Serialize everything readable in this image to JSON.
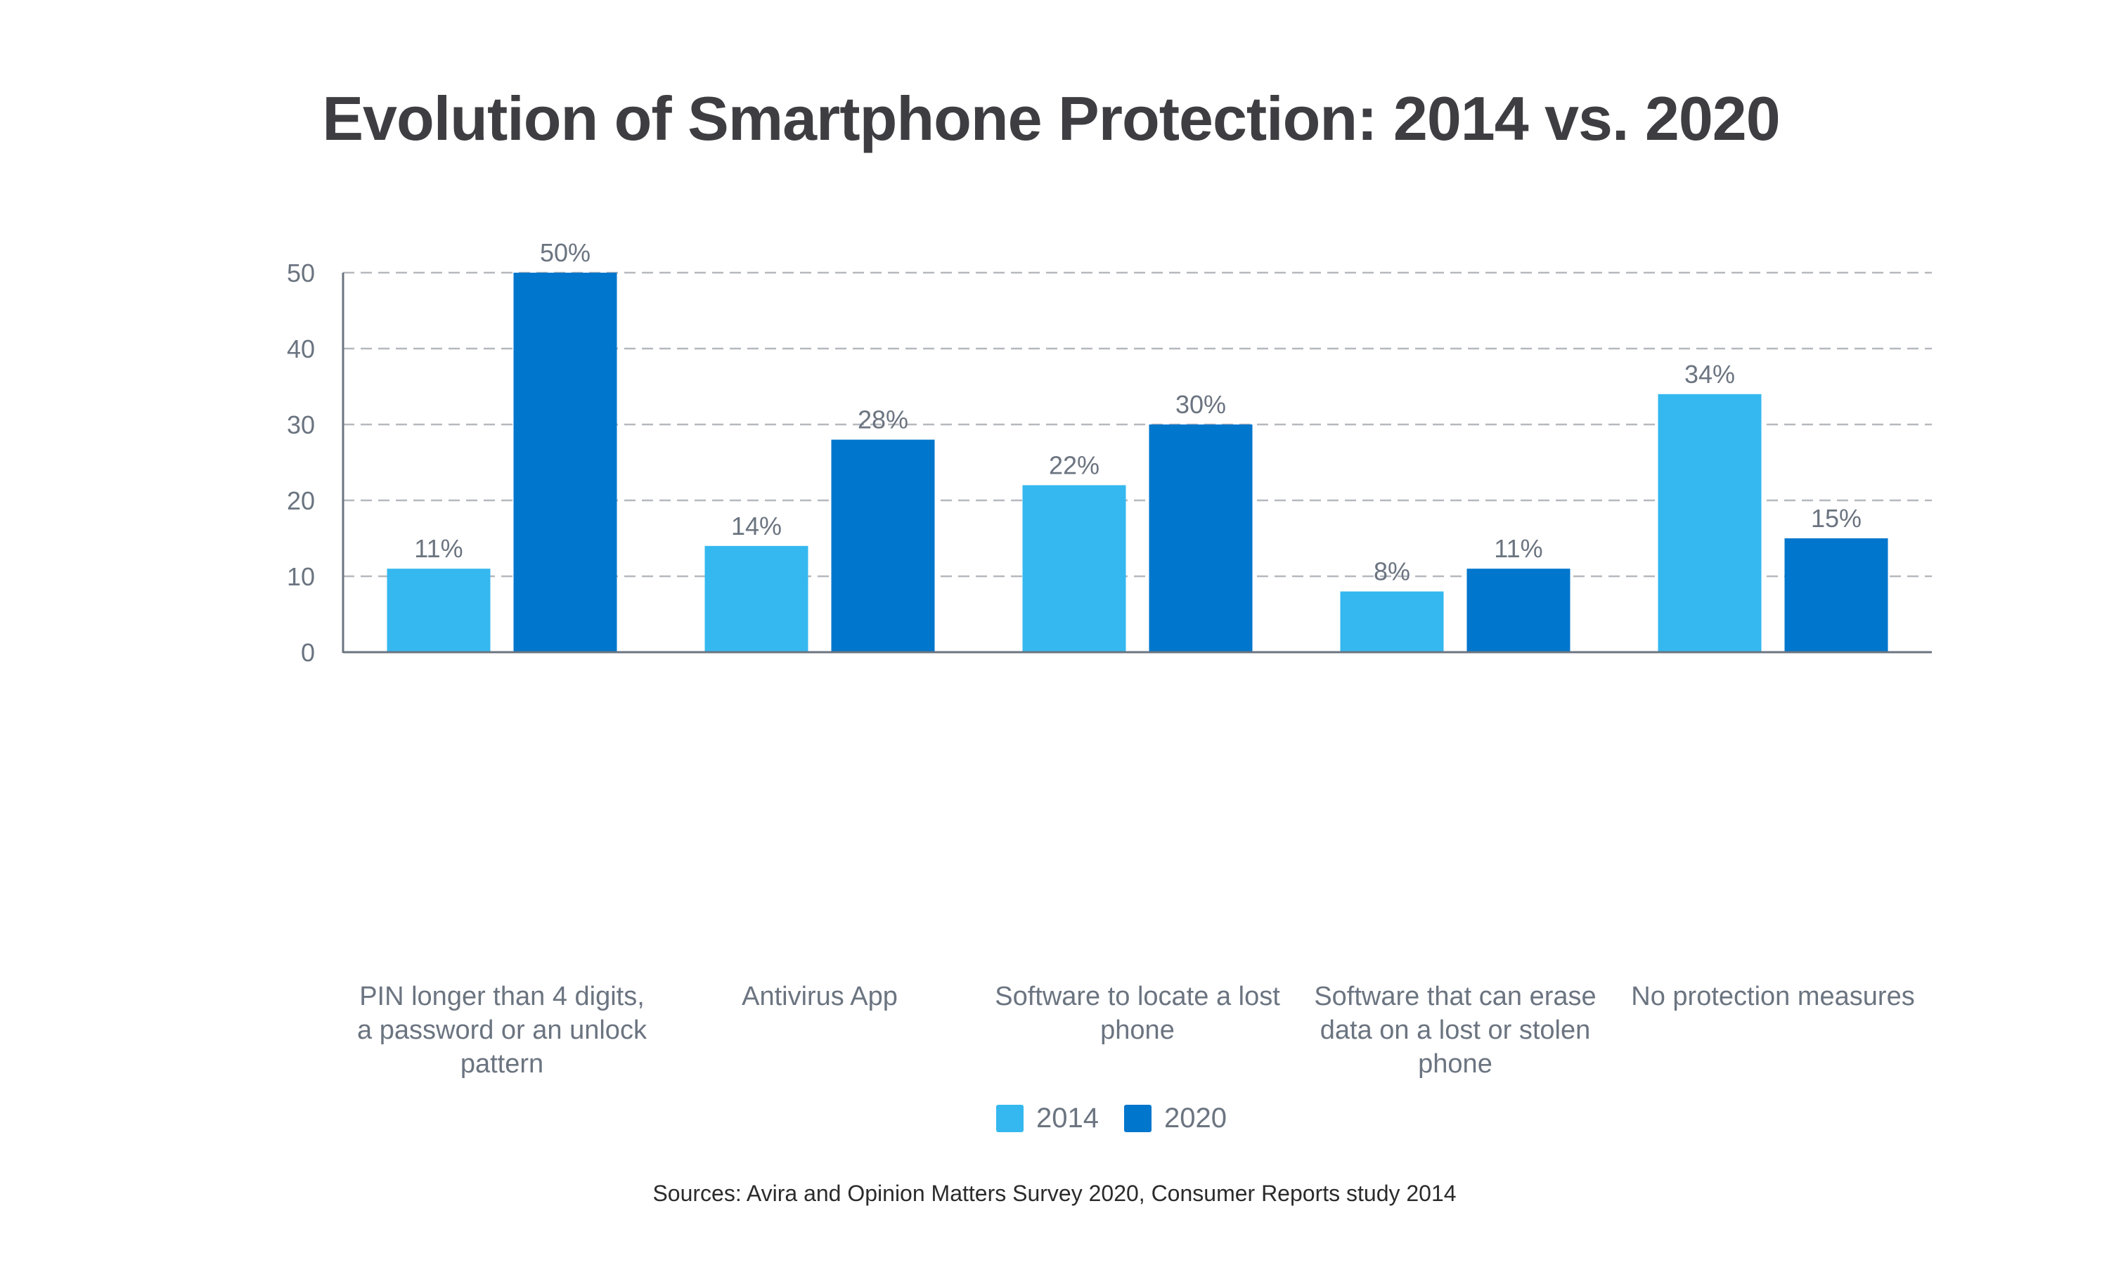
{
  "chart_data": {
    "type": "bar",
    "title": "Evolution of Smartphone Protection: 2014 vs. 2020",
    "xlabel": "",
    "ylabel": "",
    "ylim": [
      0,
      50
    ],
    "yticks": [
      0,
      10,
      20,
      30,
      40,
      50
    ],
    "grid": true,
    "categories": [
      "PIN longer than 4 digits, a password or an unlock pattern",
      "Antivirus App",
      "Software to locate a lost phone",
      "Software that can erase data on a lost or stolen phone",
      "No protection measures"
    ],
    "category_lines": [
      [
        "PIN longer than 4 digits,",
        "a password or an unlock",
        "pattern"
      ],
      [
        "Antivirus App"
      ],
      [
        "Software to locate a lost",
        "phone"
      ],
      [
        "Software that can erase",
        "data on a lost or stolen",
        "phone"
      ],
      [
        "No protection measures"
      ]
    ],
    "series": [
      {
        "name": "2014",
        "color": "#35b8ef",
        "values": [
          11,
          14,
          22,
          8,
          34
        ],
        "labels": [
          "11%",
          "14%",
          "22%",
          "8%",
          "34%"
        ]
      },
      {
        "name": "2020",
        "color": "#0076cc",
        "values": [
          50,
          28,
          30,
          11,
          15
        ],
        "labels": [
          "50%",
          "28%",
          "30%",
          "11%",
          "15%"
        ]
      }
    ],
    "legend_position": "bottom-center",
    "source": "Sources: Avira and Opinion Matters Survey 2020, Consumer Reports study 2014"
  }
}
